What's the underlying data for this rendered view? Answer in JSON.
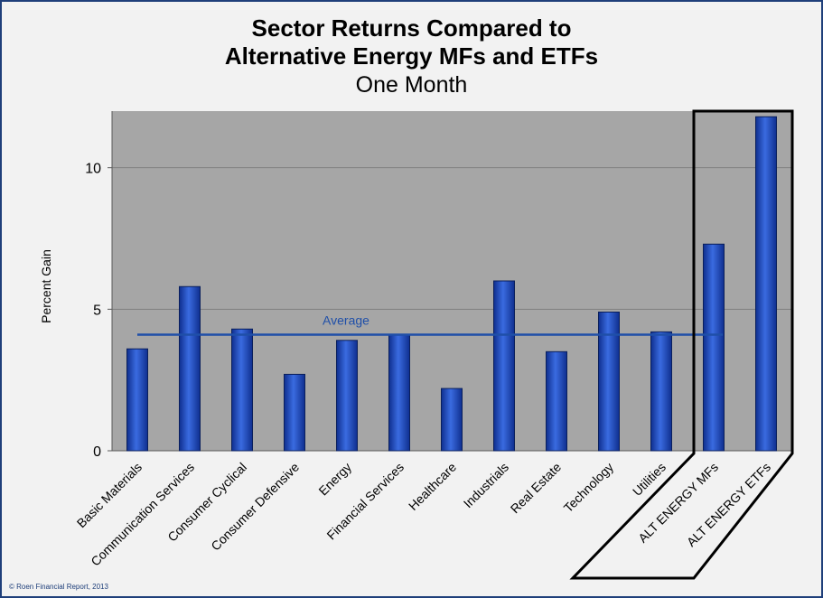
{
  "title_line1": "Sector Returns Compared to",
  "title_line2": "Alternative Energy MFs and ETFs",
  "subtitle": "One Month",
  "copyright": "© Roen Financial Report, 2013",
  "chart_data": {
    "type": "bar",
    "ylabel": "Percent Gain",
    "ylim": [
      0,
      12
    ],
    "yticks": [
      0,
      5,
      10
    ],
    "grid": true,
    "categories": [
      "Basic Materials",
      "Communication Services",
      "Consumer Cyclical",
      "Consumer Defensive",
      "Energy",
      "Financial Services",
      "Healthcare",
      "Industrials",
      "Real Estate",
      "Technology",
      "Utilities",
      "ALT ENERGY MFs",
      "ALT ENERGY ETFs"
    ],
    "values": [
      3.6,
      5.8,
      4.3,
      2.7,
      3.9,
      4.1,
      2.2,
      6.0,
      3.5,
      4.9,
      4.2,
      7.3,
      11.8
    ],
    "average": {
      "label": "Average",
      "value": 4.1
    },
    "highlighted_categories": [
      "ALT ENERGY MFs",
      "ALT ENERGY ETFs"
    ],
    "colors": {
      "bar": "#1f4fbf",
      "plot_background": "#a6a6a6",
      "average_line": "#1f4fa8",
      "average_label": "#1f4fa8"
    }
  }
}
